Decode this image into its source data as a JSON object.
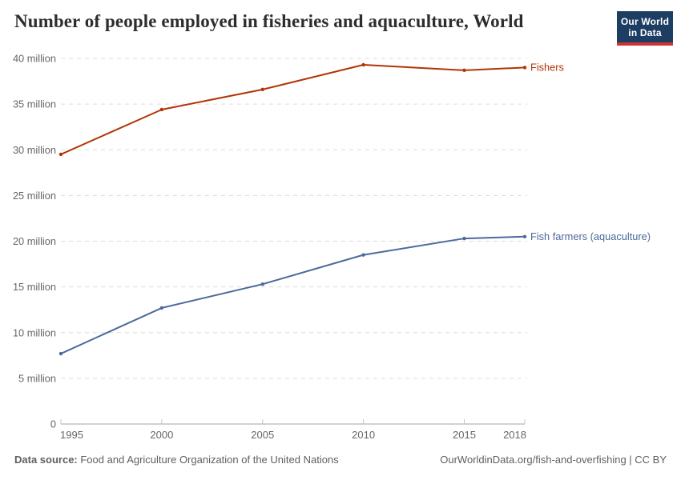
{
  "header": {
    "title": "Number of people employed in fisheries and aquaculture, World",
    "logo": {
      "line1": "Our World",
      "line2": "in Data"
    }
  },
  "chart_data": {
    "type": "line",
    "title": "Number of people employed in fisheries and aquaculture, World",
    "unit": "million people",
    "x": [
      1995,
      2000,
      2005,
      2010,
      2015,
      2018
    ],
    "xlim": [
      1995,
      2018
    ],
    "ylim": [
      0,
      40
    ],
    "grid": {
      "horizontal": true,
      "style": "dashed"
    },
    "legend": "end-of-line-labels",
    "series": [
      {
        "name": "Fishers",
        "color": "#B13507",
        "values": [
          29.5,
          34.4,
          36.6,
          39.3,
          38.7,
          39.0
        ]
      },
      {
        "name": "Fish farmers (aquaculture)",
        "color": "#4C6A9C",
        "values": [
          7.7,
          12.7,
          15.3,
          18.5,
          20.3,
          20.5
        ]
      }
    ],
    "yticks": [
      {
        "value": 0,
        "label": "0"
      },
      {
        "value": 5,
        "label": "5 million"
      },
      {
        "value": 10,
        "label": "10 million"
      },
      {
        "value": 15,
        "label": "15 million"
      },
      {
        "value": 20,
        "label": "20 million"
      },
      {
        "value": 25,
        "label": "25 million"
      },
      {
        "value": 30,
        "label": "30 million"
      },
      {
        "value": 35,
        "label": "35 million"
      },
      {
        "value": 40,
        "label": "40 million"
      }
    ],
    "xticks": [
      {
        "value": 1995,
        "label": "1995"
      },
      {
        "value": 2000,
        "label": "2000"
      },
      {
        "value": 2005,
        "label": "2005"
      },
      {
        "value": 2010,
        "label": "2010"
      },
      {
        "value": 2015,
        "label": "2015"
      },
      {
        "value": 2018,
        "label": "2018"
      }
    ]
  },
  "colors": {
    "fishers_line": "#B13507",
    "fish_farmers_line": "#4C6A9C",
    "gridline": "#dcdcdc",
    "axis_line": "#a3a3a3",
    "tick_mark": "#c4c4c4",
    "tick_text": "#666666",
    "title_text": "#2d2d2d",
    "footer_text": "#5f5f5f",
    "logo_bg": "#1d3d63",
    "logo_accent": "#cb3335"
  },
  "footer": {
    "source_label": "Data source:",
    "source_text": " Food and Agriculture Organization of the United Nations",
    "right_text": "OurWorldinData.org/fish-and-overfishing | CC BY"
  }
}
